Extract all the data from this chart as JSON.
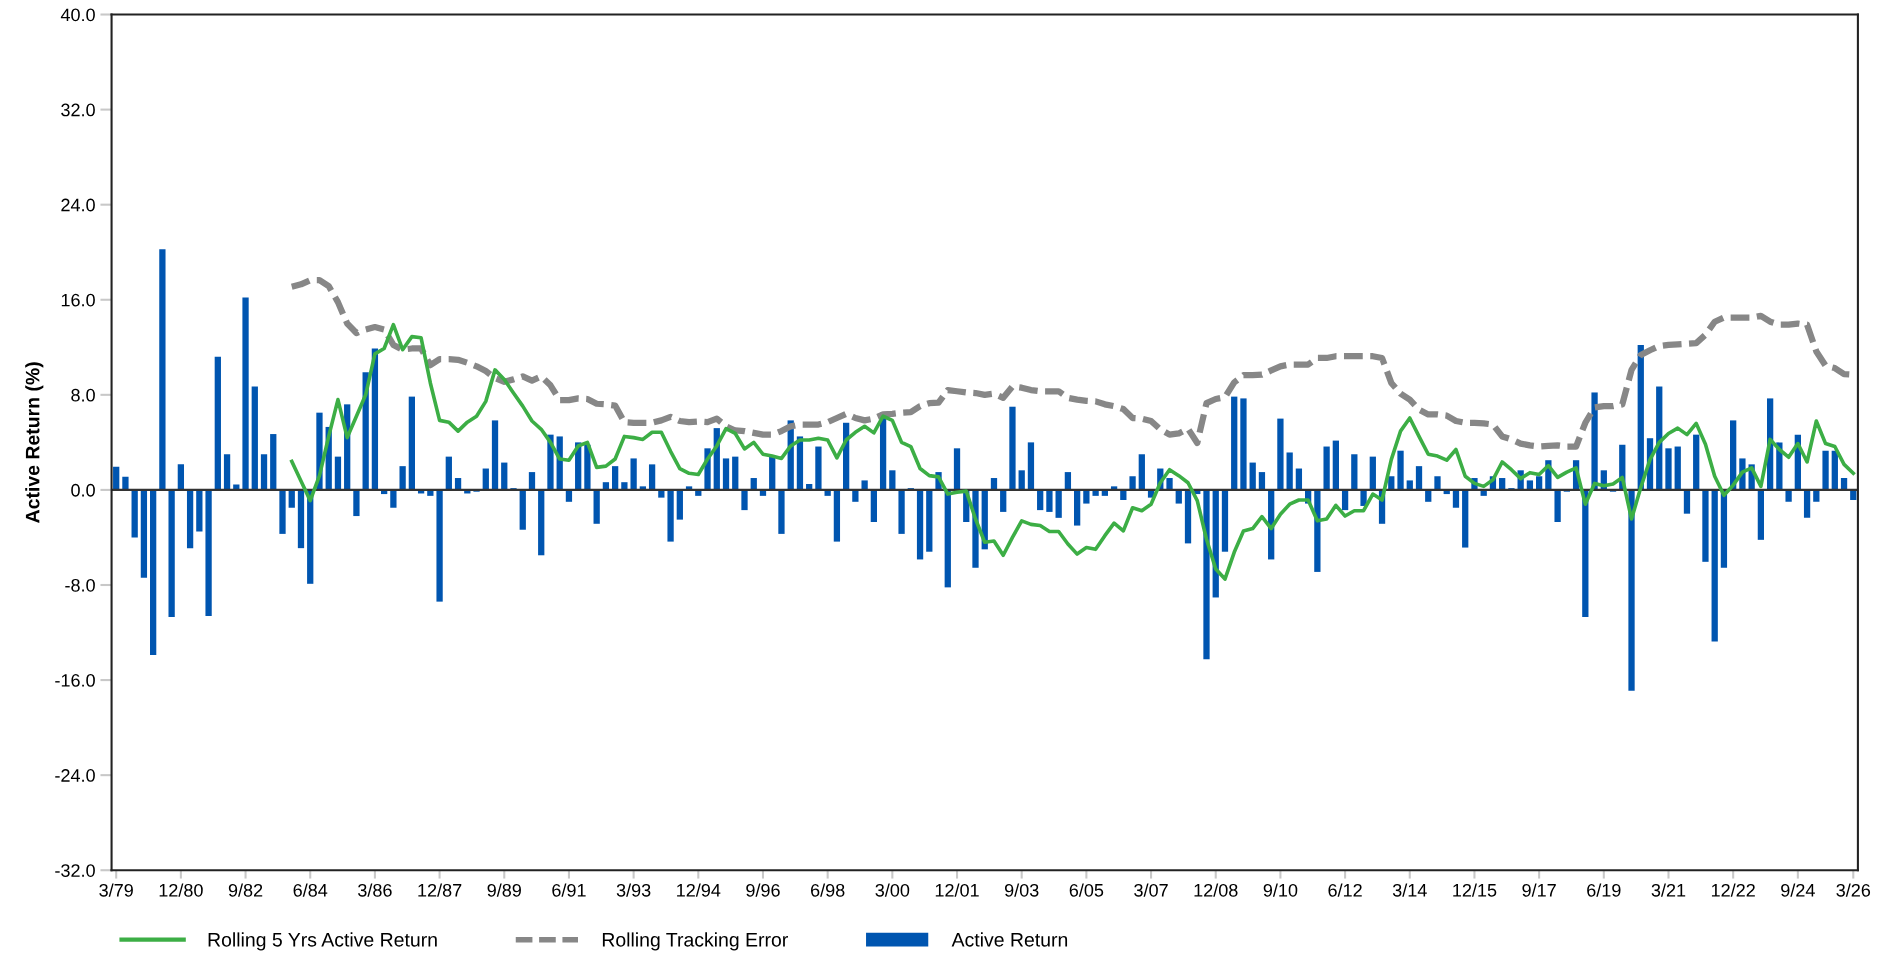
{
  "chart_data": {
    "type": "bar",
    "ylabel": "Active Return (%)",
    "categories": [
      "3/79",
      null,
      null,
      null,
      null,
      null,
      null,
      "12/80",
      null,
      null,
      null,
      null,
      null,
      null,
      "9/82",
      null,
      null,
      null,
      null,
      null,
      null,
      "6/84",
      null,
      null,
      null,
      null,
      null,
      null,
      "3/86",
      null,
      null,
      null,
      null,
      null,
      null,
      "12/87",
      null,
      null,
      null,
      null,
      null,
      null,
      "9/89",
      null,
      null,
      null,
      null,
      null,
      null,
      "6/91",
      null,
      null,
      null,
      null,
      null,
      null,
      "3/93",
      null,
      null,
      null,
      null,
      null,
      null,
      "12/94",
      null,
      null,
      null,
      null,
      null,
      null,
      "9/96",
      null,
      null,
      null,
      null,
      null,
      null,
      "6/98",
      null,
      null,
      null,
      null,
      null,
      null,
      "3/00",
      null,
      null,
      null,
      null,
      null,
      null,
      "12/01",
      null,
      null,
      null,
      null,
      null,
      null,
      "9/03",
      null,
      null,
      null,
      null,
      null,
      null,
      "6/05",
      null,
      null,
      null,
      null,
      null,
      null,
      "3/07",
      null,
      null,
      null,
      null,
      null,
      null,
      "12/08",
      null,
      null,
      null,
      null,
      null,
      null,
      "9/10",
      null,
      null,
      null,
      null,
      null,
      null,
      "6/12",
      null,
      null,
      null,
      null,
      null,
      null,
      "3/14",
      null,
      null,
      null,
      null,
      null,
      null,
      "12/15",
      null,
      null,
      null,
      null,
      null,
      null,
      "9/17",
      null,
      null,
      null,
      null,
      null,
      null,
      "6/19",
      null,
      null,
      null,
      null,
      null,
      null,
      "3/21",
      null,
      null,
      null,
      null,
      null,
      null,
      "12/22",
      null,
      null,
      null,
      null,
      null,
      null,
      "9/24",
      null,
      null,
      null,
      null,
      null,
      "3/26"
    ],
    "series": [
      {
        "name": "Rolling 5 Yrs Active Return",
        "type": "line",
        "line_style": "solid",
        "color": "#3cae45",
        "values": [
          null,
          null,
          null,
          null,
          null,
          null,
          null,
          null,
          null,
          null,
          null,
          null,
          null,
          null,
          null,
          null,
          null,
          null,
          null,
          2.4,
          0.75,
          -0.9,
          1.2,
          4.5,
          7.6,
          4.4,
          6.2,
          8.0,
          11.45,
          11.9,
          13.9,
          11.8,
          12.9,
          12.8,
          9.0,
          5.85,
          5.7,
          4.95,
          5.7,
          6.2,
          7.45,
          10.1,
          9.3,
          8.15,
          7.05,
          5.8,
          5.1,
          4.0,
          2.6,
          2.5,
          3.7,
          4.0,
          1.9,
          2.0,
          2.6,
          4.5,
          4.4,
          4.25,
          4.85,
          4.85,
          3.25,
          1.8,
          1.4,
          1.3,
          2.6,
          3.7,
          5.15,
          4.75,
          3.45,
          4.0,
          3.0,
          2.85,
          2.65,
          3.7,
          4.2,
          4.2,
          4.35,
          4.2,
          2.7,
          4.2,
          4.85,
          5.35,
          4.8,
          6.2,
          5.85,
          4.0,
          3.65,
          1.8,
          1.2,
          1.1,
          -0.35,
          -0.2,
          -0.1,
          -2.45,
          -4.4,
          -4.3,
          -5.5,
          -4.0,
          -2.6,
          -2.9,
          -3.0,
          -3.5,
          -3.5,
          -4.55,
          -5.4,
          -4.85,
          -5.0,
          -3.85,
          -2.8,
          -3.45,
          -1.5,
          -1.75,
          -1.2,
          0.6,
          1.7,
          1.2,
          0.6,
          -0.9,
          -4.15,
          -6.65,
          -7.5,
          -5.25,
          -3.45,
          -3.25,
          -2.25,
          -3.25,
          -2.05,
          -1.2,
          -0.85,
          -0.85,
          -2.6,
          -2.45,
          -1.3,
          -2.2,
          -1.75,
          -1.75,
          -0.35,
          -0.85,
          2.55,
          4.95,
          6.05,
          4.5,
          3.0,
          2.85,
          2.5,
          3.4,
          1.15,
          0.55,
          0.3,
          0.85,
          2.35,
          1.7,
          0.95,
          1.45,
          1.3,
          2.05,
          1.05,
          1.5,
          1.85,
          -1.2,
          0.55,
          0.35,
          0.5,
          1.05,
          -2.45,
          0.2,
          2.55,
          4.0,
          4.75,
          5.2,
          4.65,
          5.6,
          3.85,
          1.15,
          -0.45,
          0.4,
          1.5,
          1.85,
          0.3,
          4.25,
          3.4,
          2.75,
          3.9,
          2.35,
          5.8,
          3.9,
          3.65,
          2.15,
          1.4
        ]
      },
      {
        "name": "Rolling Tracking Error",
        "type": "line",
        "line_style": "dashed",
        "color": "#878787",
        "values": [
          null,
          null,
          null,
          null,
          null,
          null,
          null,
          null,
          null,
          null,
          null,
          null,
          null,
          null,
          null,
          null,
          null,
          null,
          null,
          17.1,
          17.3,
          17.65,
          17.65,
          17.15,
          15.8,
          14.0,
          13.2,
          13.5,
          13.7,
          13.5,
          12.2,
          11.8,
          11.9,
          11.9,
          10.5,
          11.0,
          11.0,
          10.95,
          10.7,
          10.4,
          10.0,
          9.4,
          9.1,
          9.3,
          9.55,
          9.2,
          9.55,
          8.8,
          7.55,
          7.55,
          7.7,
          7.65,
          7.25,
          7.2,
          7.1,
          5.7,
          5.65,
          5.65,
          5.65,
          5.85,
          6.15,
          5.8,
          5.7,
          5.75,
          5.7,
          6.0,
          5.35,
          5.0,
          4.95,
          4.8,
          4.65,
          4.65,
          4.95,
          5.35,
          5.5,
          5.5,
          5.5,
          5.7,
          6.05,
          6.4,
          6.05,
          5.85,
          6.0,
          6.35,
          6.4,
          6.5,
          6.55,
          7.05,
          7.3,
          7.35,
          8.4,
          8.3,
          8.2,
          8.15,
          8.0,
          8.1,
          7.75,
          8.7,
          8.6,
          8.4,
          8.3,
          8.3,
          8.3,
          7.75,
          7.6,
          7.5,
          7.45,
          7.2,
          7.05,
          6.8,
          6.05,
          6.0,
          5.8,
          5.1,
          4.65,
          4.75,
          5.15,
          3.95,
          7.3,
          7.65,
          7.8,
          9.05,
          9.65,
          9.65,
          9.7,
          10.05,
          10.4,
          10.55,
          10.55,
          10.55,
          11.1,
          11.1,
          11.25,
          11.25,
          11.25,
          11.25,
          11.25,
          11.1,
          9.0,
          8.1,
          7.6,
          6.75,
          6.35,
          6.35,
          6.25,
          5.8,
          5.65,
          5.65,
          5.6,
          5.5,
          4.5,
          4.25,
          3.9,
          3.75,
          3.65,
          3.7,
          3.75,
          3.65,
          3.65,
          5.65,
          6.95,
          7.05,
          7.05,
          7.2,
          10.1,
          11.35,
          11.75,
          12.1,
          12.2,
          12.25,
          12.3,
          12.35,
          13.05,
          14.15,
          14.5,
          14.5,
          14.5,
          14.5,
          14.65,
          14.15,
          13.9,
          13.9,
          14.0,
          13.9,
          11.65,
          10.45,
          10.25,
          9.75,
          9.7
        ]
      },
      {
        "name": "Active Return",
        "color": "#0055b0",
        "values": [
          1.95,
          1.1,
          -4.0,
          -7.4,
          -13.9,
          20.25,
          -10.7,
          2.15,
          -4.9,
          -3.5,
          -10.6,
          11.2,
          3.0,
          0.45,
          16.2,
          8.7,
          3.0,
          4.7,
          -3.7,
          -1.5,
          -4.9,
          -7.9,
          6.5,
          5.3,
          2.8,
          7.2,
          -2.2,
          9.9,
          11.9,
          -0.35,
          -1.5,
          2.0,
          7.85,
          -0.3,
          -0.5,
          -9.4,
          2.8,
          1.0,
          -0.3,
          -0.15,
          1.8,
          5.85,
          2.3,
          0.15,
          -3.35,
          1.5,
          -5.5,
          4.65,
          4.5,
          -1.0,
          4.0,
          3.8,
          -2.85,
          0.65,
          2.0,
          0.65,
          2.65,
          0.3,
          2.15,
          -0.65,
          -4.35,
          -2.5,
          0.3,
          -0.5,
          3.5,
          5.2,
          2.65,
          2.8,
          -1.7,
          1.0,
          -0.5,
          2.8,
          -3.7,
          5.85,
          4.5,
          0.5,
          3.65,
          -0.5,
          -4.35,
          5.65,
          -1.0,
          0.8,
          -2.7,
          6.5,
          1.65,
          -3.7,
          0.15,
          -5.85,
          -5.2,
          1.5,
          -8.2,
          3.5,
          -2.7,
          -6.55,
          -5.0,
          1.0,
          -1.85,
          7.0,
          1.65,
          4.0,
          -1.7,
          -1.85,
          -2.35,
          1.5,
          -3.0,
          -1.15,
          -0.5,
          -0.5,
          0.3,
          -0.85,
          1.15,
          3.0,
          -0.65,
          1.8,
          1.0,
          -1.15,
          -4.5,
          -0.35,
          -14.25,
          -9.05,
          -5.2,
          7.85,
          7.7,
          2.3,
          1.5,
          -5.85,
          6.0,
          3.15,
          1.8,
          -1.15,
          -6.9,
          3.65,
          4.15,
          -1.7,
          3.0,
          -1.35,
          2.8,
          -2.85,
          1.15,
          3.3,
          0.8,
          2.0,
          -1.0,
          1.15,
          -0.35,
          -1.5,
          -4.85,
          1.0,
          -0.5,
          1.15,
          1.0,
          0.15,
          1.65,
          0.8,
          1.15,
          2.5,
          -2.7,
          -0.15,
          2.5,
          -10.7,
          8.2,
          1.65,
          -0.15,
          3.8,
          -16.9,
          12.2,
          4.35,
          8.7,
          3.5,
          3.65,
          -2.0,
          4.65,
          -6.05,
          -12.75,
          -6.55,
          5.85,
          2.65,
          2.15,
          -4.2,
          7.7,
          4.0,
          -1.0,
          4.65,
          -2.35,
          -1.0,
          3.3,
          3.3,
          1.0,
          -0.85
        ]
      }
    ],
    "ylim": [
      -32,
      40
    ],
    "yticks": [
      {
        "value": -32,
        "label": "-32.0"
      },
      {
        "value": -24,
        "label": "-24.0"
      },
      {
        "value": -16,
        "label": "-16.0"
      },
      {
        "value": -8,
        "label": "-8.0"
      },
      {
        "value": 0,
        "label": "0.0"
      },
      {
        "value": 8,
        "label": "8.0"
      },
      {
        "value": 16,
        "label": "16.0"
      },
      {
        "value": 24,
        "label": "24.0"
      },
      {
        "value": 32,
        "label": "32.0"
      },
      {
        "value": 40,
        "label": "40.0"
      }
    ],
    "ref_lines": [
      {
        "axis": "y",
        "value": 0,
        "color": "#333333"
      }
    ],
    "grid": false,
    "legend": "bottom"
  }
}
